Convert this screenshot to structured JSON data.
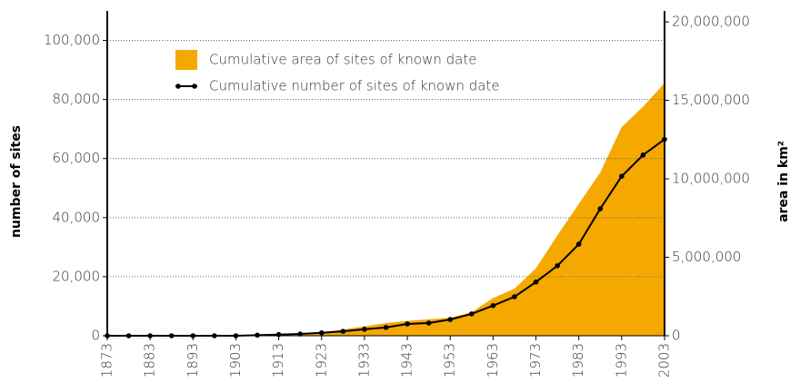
{
  "chart_data": {
    "type": "line",
    "x": [
      1873,
      1878,
      1883,
      1888,
      1893,
      1898,
      1903,
      1908,
      1913,
      1918,
      1923,
      1928,
      1933,
      1938,
      1943,
      1948,
      1953,
      1958,
      1963,
      1968,
      1973,
      1978,
      1983,
      1988,
      1993,
      1998,
      2003
    ],
    "xlim": [
      1873,
      2003
    ],
    "xticks": [
      1873,
      1883,
      1893,
      1903,
      1913,
      1923,
      1933,
      1943,
      1953,
      1963,
      1973,
      1983,
      1993,
      2003
    ],
    "ylabel": "number of sites",
    "y2label": "area in km²",
    "ylim": [
      0,
      110000
    ],
    "yticks": [
      0,
      {
        "value": 20000,
        "label": "20,000"
      },
      {
        "value": 40000,
        "label": "40,000"
      },
      {
        "value": 60000,
        "label": "60,000"
      },
      {
        "value": 80000,
        "label": "80,000"
      },
      {
        "value": 100000,
        "label": "100,000"
      }
    ],
    "y2lim": [
      0,
      20700000
    ],
    "y2ticks": [
      0,
      {
        "value": 5000000,
        "label": "5,000,000"
      },
      {
        "value": 10000000,
        "label": "10,000,000"
      },
      {
        "value": 15000000,
        "label": "15,000,000"
      },
      {
        "value": 20000000,
        "label": "20,000,000"
      }
    ],
    "grid": true,
    "series": [
      {
        "name": "Cumulative area of sites of known date",
        "kind": "area",
        "axis": "y2",
        "color": "#f5a800",
        "values": [
          0,
          0,
          0,
          0,
          0,
          0,
          0,
          0,
          30000,
          60000,
          200000,
          400000,
          600000,
          800000,
          950000,
          1050000,
          1150000,
          1500000,
          2400000,
          3000000,
          4300000,
          6400000,
          8400000,
          10400000,
          13300000,
          14600000,
          16100000
        ]
      },
      {
        "name": "Cumulative number of sites of known date",
        "kind": "line",
        "color": "#000000",
        "values": [
          0,
          0,
          0,
          0,
          0,
          0,
          0,
          200,
          400,
          600,
          1000,
          1500,
          2200,
          2800,
          4000,
          4300,
          5500,
          7400,
          10200,
          13200,
          18200,
          23700,
          31000,
          43000,
          54000,
          61200,
          66500
        ]
      }
    ]
  }
}
